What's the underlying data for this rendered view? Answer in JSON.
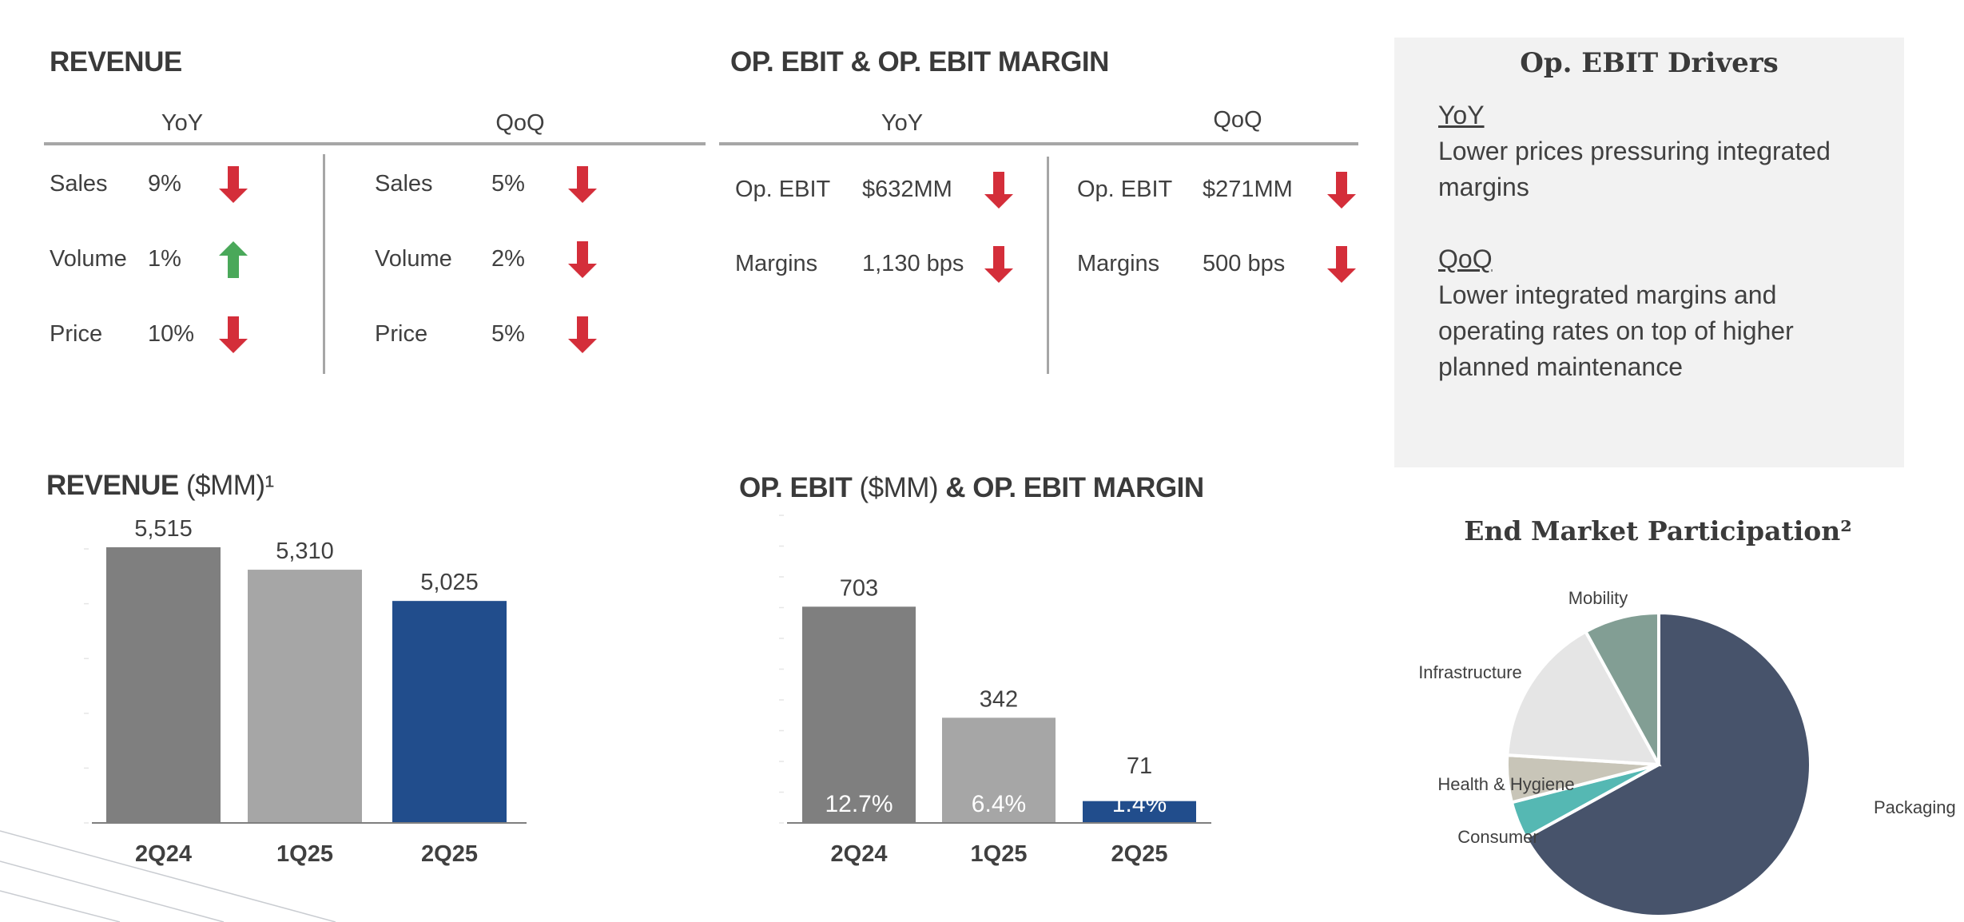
{
  "revenue_table": {
    "title": "REVENUE",
    "yoy_label": "YoY",
    "qoq_label": "QoQ",
    "yoy_rows": [
      {
        "label": "Sales",
        "value": "9%",
        "direction": "down"
      },
      {
        "label": "Volume",
        "value": "1%",
        "direction": "up"
      },
      {
        "label": "Price",
        "value": "10%",
        "direction": "down"
      }
    ],
    "qoq_rows": [
      {
        "label": "Sales",
        "value": "5%",
        "direction": "down"
      },
      {
        "label": "Volume",
        "value": "2%",
        "direction": "down"
      },
      {
        "label": "Price",
        "value": "5%",
        "direction": "down"
      }
    ]
  },
  "ebit_table": {
    "title": "OP. EBIT & OP. EBIT MARGIN",
    "yoy_label": "YoY",
    "qoq_label": "QoQ",
    "yoy_rows": [
      {
        "label": "Op. EBIT",
        "value": "$632MM",
        "direction": "down"
      },
      {
        "label": "Margins",
        "value": "1,130 bps",
        "direction": "down"
      }
    ],
    "qoq_rows": [
      {
        "label": "Op. EBIT",
        "value": "$271MM",
        "direction": "down"
      },
      {
        "label": "Margins",
        "value": "500 bps",
        "direction": "down"
      }
    ]
  },
  "drivers": {
    "title": "Op. EBIT Drivers",
    "yoy_label": "YoY",
    "yoy_lines": [
      "Lower prices pressuring integrated",
      "margins"
    ],
    "qoq_label": "QoQ",
    "qoq_lines": [
      "Lower integrated margins and",
      "operating rates on top of higher",
      "planned maintenance"
    ]
  },
  "colors": {
    "down": "#d42e3a",
    "up": "#4aa85a",
    "bar_prior_year": "#7f7f7f",
    "bar_prior_quarter": "#a6a6a6",
    "bar_current": "#214d8c"
  },
  "chart_data": [
    {
      "type": "bar",
      "title": "REVENUE",
      "title_unit": "($MM)¹",
      "categories": [
        "2Q24",
        "1Q25",
        "2Q25"
      ],
      "values": [
        5515,
        5310,
        5025
      ],
      "data_labels": [
        "5,515",
        "5,310",
        "5,025"
      ],
      "ylim": [
        3000,
        5500
      ],
      "ytick_step": 500,
      "grid": false
    },
    {
      "type": "bar",
      "title": "OP. EBIT",
      "title_unit": "($MM)",
      "title_suffix": "& OP. EBIT MARGIN",
      "categories": [
        "2Q24",
        "1Q25",
        "2Q25"
      ],
      "values": [
        703,
        342,
        71
      ],
      "data_labels": [
        "703",
        "342",
        "71"
      ],
      "margins": [
        "12.7%",
        "6.4%",
        "1.4%"
      ],
      "ylim": [
        0,
        1000
      ],
      "ytick_step": 100,
      "grid": false
    },
    {
      "type": "pie",
      "title": "End Market Participation²",
      "slices": [
        {
          "label": "Packaging",
          "value": 67,
          "color": "#47536b"
        },
        {
          "label": "Consumer",
          "value": 4,
          "color": "#55b8b3"
        },
        {
          "label": "Health & Hygiene",
          "value": 5,
          "color": "#c8c5b8"
        },
        {
          "label": "Infrastructure",
          "value": 16,
          "color": "#e5e5e5"
        },
        {
          "label": "Mobility",
          "value": 8,
          "color": "#829e94"
        }
      ],
      "start": "top",
      "direction": "clockwise"
    }
  ]
}
